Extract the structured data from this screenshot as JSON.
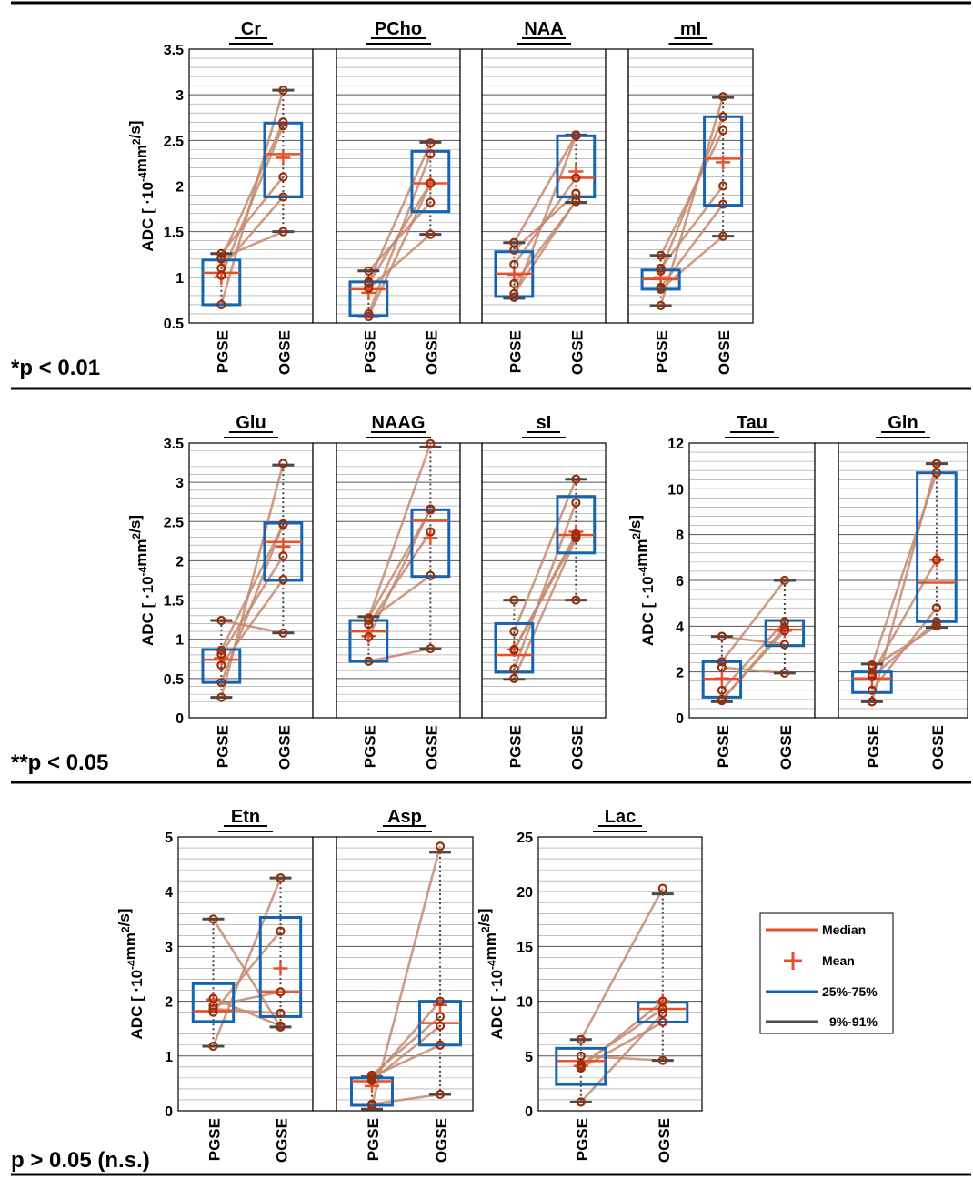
{
  "colors": {
    "median": "#e8502a",
    "mean": "#ea4e2a",
    "box": "#1464b4",
    "whisker": "#4a4a4a",
    "point": "#9a2e0a",
    "line": "#c58a6e",
    "frame": "#000000",
    "grid_major": "#555555",
    "grid_minor": "#9a9a9a"
  },
  "sections": [
    {
      "significance": "*p < 0.01"
    },
    {
      "significance": "**p < 0.05"
    },
    {
      "significance": "p > 0.05 (n.s.)"
    }
  ],
  "legend": {
    "median": "Median",
    "mean": "Mean",
    "box": "25%-75%",
    "whisker": "9%-91%"
  },
  "chart_data": [
    {
      "type": "box",
      "metabolite": "Cr",
      "ylim": [
        0.5,
        3.5
      ],
      "yticks": [
        0.5,
        1,
        1.5,
        2,
        2.5,
        3,
        3.5
      ],
      "ylabel": "ADC [ ·10^-4 mm^2/s]",
      "categories": [
        "PGSE",
        "OGSE"
      ],
      "pgse": {
        "q1": 0.7,
        "q3": 1.19,
        "median": 1.05,
        "mean": 1.0,
        "wlo": 0.7,
        "whi": 1.26,
        "points": [
          0.7,
          1.02,
          1.1,
          1.2,
          1.26,
          1.21
        ]
      },
      "ogse": {
        "q1": 1.88,
        "q3": 2.69,
        "median": 2.35,
        "mean": 2.31,
        "wlo": 1.5,
        "whi": 3.05,
        "points": [
          3.05,
          2.66,
          1.88,
          2.7,
          2.1,
          1.5
        ]
      }
    },
    {
      "type": "box",
      "metabolite": "PCho",
      "ylim": [
        0.5,
        3.5
      ],
      "yticks": [
        0.5,
        1,
        1.5,
        2,
        2.5,
        3,
        3.5
      ],
      "categories": [
        "PGSE",
        "OGSE"
      ],
      "pgse": {
        "q1": 0.58,
        "q3": 0.95,
        "median": 0.87,
        "mean": 0.83,
        "wlo": 0.57,
        "whi": 1.07,
        "points": [
          0.57,
          0.6,
          0.88,
          0.95,
          1.07,
          0.93
        ]
      },
      "ogse": {
        "q1": 1.72,
        "q3": 2.38,
        "median": 2.03,
        "mean": 2.03,
        "wlo": 1.47,
        "whi": 2.48,
        "points": [
          2.03,
          2.35,
          1.47,
          2.47,
          1.82,
          2.03
        ]
      }
    },
    {
      "type": "box",
      "metabolite": "NAA",
      "ylim": [
        0.5,
        3.5
      ],
      "yticks": [
        0.5,
        1,
        1.5,
        2,
        2.5,
        3,
        3.5
      ],
      "categories": [
        "PGSE",
        "OGSE"
      ],
      "pgse": {
        "q1": 0.79,
        "q3": 1.28,
        "median": 1.04,
        "mean": 1.03,
        "wlo": 0.77,
        "whi": 1.38,
        "points": [
          0.78,
          1.38,
          0.93,
          1.3,
          0.82,
          1.14
        ]
      },
      "ogse": {
        "q1": 1.88,
        "q3": 2.55,
        "median": 2.09,
        "mean": 2.16,
        "wlo": 1.82,
        "whi": 2.56,
        "points": [
          2.55,
          2.56,
          1.83,
          1.92,
          1.84,
          2.09
        ]
      }
    },
    {
      "type": "box",
      "metabolite": "mI",
      "ylim": [
        0.5,
        3.5
      ],
      "yticks": [
        0.5,
        1,
        1.5,
        2,
        2.5,
        3,
        3.5
      ],
      "categories": [
        "PGSE",
        "OGSE"
      ],
      "pgse": {
        "q1": 0.87,
        "q3": 1.08,
        "median": 0.98,
        "mean": 1.0,
        "wlo": 0.69,
        "whi": 1.24,
        "points": [
          0.69,
          1.07,
          1.24,
          1.1,
          0.89,
          0.87
        ]
      },
      "ogse": {
        "q1": 1.79,
        "q3": 2.76,
        "median": 2.3,
        "mean": 2.26,
        "wlo": 1.45,
        "whi": 2.97,
        "points": [
          2.98,
          2.76,
          2.61,
          2.0,
          1.8,
          1.45
        ]
      }
    },
    {
      "type": "box",
      "metabolite": "Glu",
      "ylim": [
        0,
        3.5
      ],
      "yticks": [
        0,
        0.5,
        1,
        1.5,
        2,
        2.5,
        3,
        3.5
      ],
      "categories": [
        "PGSE",
        "OGSE"
      ],
      "pgse": {
        "q1": 0.45,
        "q3": 0.87,
        "median": 0.74,
        "mean": 0.76,
        "wlo": 0.26,
        "whi": 1.24,
        "points": [
          0.26,
          0.45,
          0.67,
          0.81,
          0.86,
          1.24
        ]
      },
      "ogse": {
        "q1": 1.75,
        "q3": 2.48,
        "median": 2.24,
        "mean": 2.18,
        "wlo": 1.08,
        "whi": 3.22,
        "points": [
          3.24,
          2.47,
          1.76,
          2.06,
          2.46,
          1.08
        ]
      }
    },
    {
      "type": "box",
      "metabolite": "NAAG",
      "ylim": [
        0,
        3.5
      ],
      "yticks": [
        0,
        0.5,
        1,
        1.5,
        2,
        2.5,
        3,
        3.5
      ],
      "categories": [
        "PGSE",
        "OGSE"
      ],
      "pgse": {
        "q1": 0.72,
        "q3": 1.24,
        "median": 1.1,
        "mean": 1.04,
        "wlo": 0.72,
        "whi": 1.29,
        "points": [
          0.72,
          1.27,
          1.19,
          1.24,
          1.03,
          1.27
        ]
      },
      "ogse": {
        "q1": 1.8,
        "q3": 2.65,
        "median": 2.51,
        "mean": 2.29,
        "wlo": 0.88,
        "whi": 3.45,
        "points": [
          0.88,
          3.49,
          2.37,
          1.81,
          2.66,
          2.65
        ]
      }
    },
    {
      "type": "box",
      "metabolite": "sI",
      "ylim": [
        0,
        3.5
      ],
      "yticks": [
        0,
        0.5,
        1,
        1.5,
        2,
        2.5,
        3,
        3.5
      ],
      "categories": [
        "PGSE",
        "OGSE"
      ],
      "pgse": {
        "q1": 0.58,
        "q3": 1.2,
        "median": 0.8,
        "mean": 0.87,
        "wlo": 0.49,
        "whi": 1.5,
        "points": [
          1.5,
          1.1,
          0.62,
          0.5,
          0.86,
          0.87
        ]
      },
      "ogse": {
        "q1": 2.1,
        "q3": 2.82,
        "median": 2.33,
        "mean": 2.37,
        "wlo": 1.5,
        "whi": 3.04,
        "points": [
          1.5,
          3.04,
          2.74,
          2.29,
          2.31,
          2.34
        ]
      }
    },
    {
      "type": "box",
      "metabolite": "Tau",
      "ylim": [
        0,
        12
      ],
      "yticks": [
        0,
        2,
        4,
        6,
        8,
        10,
        12
      ],
      "categories": [
        "PGSE",
        "OGSE"
      ],
      "pgse": {
        "q1": 0.9,
        "q3": 2.45,
        "median": 1.7,
        "mean": 1.72,
        "wlo": 0.7,
        "whi": 3.55,
        "points": [
          3.55,
          2.2,
          2.45,
          0.8,
          1.2,
          0.75
        ]
      },
      "ogse": {
        "q1": 3.15,
        "q3": 4.25,
        "median": 3.85,
        "mean": 3.8,
        "wlo": 1.95,
        "whi": 6.0,
        "points": [
          3.2,
          1.95,
          6.0,
          3.8,
          4.2,
          3.95
        ]
      }
    },
    {
      "type": "box",
      "metabolite": "Gln",
      "ylim": [
        0,
        12
      ],
      "yticks": [
        0,
        2,
        4,
        6,
        8,
        10,
        12
      ],
      "categories": [
        "PGSE",
        "OGSE"
      ],
      "pgse": {
        "q1": 1.1,
        "q3": 2.0,
        "median": 1.72,
        "mean": 1.68,
        "wlo": 0.7,
        "whi": 2.35,
        "points": [
          0.7,
          2.3,
          1.2,
          1.8,
          1.9,
          2.2
        ]
      },
      "ogse": {
        "q1": 4.2,
        "q3": 10.7,
        "median": 5.9,
        "mean": 6.9,
        "wlo": 3.95,
        "whi": 11.1,
        "points": [
          11.1,
          10.7,
          4.8,
          4.2,
          6.9,
          4.0
        ]
      }
    },
    {
      "type": "box",
      "metabolite": "Etn",
      "ylim": [
        0,
        5
      ],
      "yticks": [
        0,
        1,
        2,
        3,
        4,
        5
      ],
      "categories": [
        "PGSE",
        "OGSE"
      ],
      "pgse": {
        "q1": 1.63,
        "q3": 2.32,
        "median": 1.82,
        "mean": 2.03,
        "wlo": 1.18,
        "whi": 3.5,
        "points": [
          1.18,
          3.5,
          1.8,
          1.86,
          1.92,
          2.05
        ]
      },
      "ogse": {
        "q1": 1.72,
        "q3": 3.53,
        "median": 2.17,
        "mean": 2.6,
        "wlo": 1.53,
        "whi": 4.25,
        "points": [
          4.25,
          1.53,
          3.28,
          1.78,
          2.17,
          1.55
        ]
      }
    },
    {
      "type": "box",
      "metabolite": "Asp",
      "ylim": [
        0,
        5
      ],
      "yticks": [
        0,
        1,
        2,
        3,
        4,
        5
      ],
      "categories": [
        "PGSE",
        "OGSE"
      ],
      "pgse": {
        "q1": 0.1,
        "q3": 0.6,
        "median": 0.54,
        "mean": 0.45,
        "wlo": 0.03,
        "whi": 0.62,
        "points": [
          0.1,
          0.58,
          0.65,
          0.55,
          0.62,
          0.12
        ]
      },
      "ogse": {
        "q1": 1.2,
        "q3": 2.0,
        "median": 1.6,
        "mean": 1.93,
        "wlo": 0.3,
        "whi": 4.72,
        "points": [
          4.83,
          2.0,
          1.72,
          1.55,
          1.2,
          0.3
        ]
      }
    },
    {
      "type": "box",
      "metabolite": "Lac",
      "ylim": [
        0,
        25
      ],
      "yticks": [
        0,
        5,
        10,
        15,
        20,
        25
      ],
      "categories": [
        "PGSE",
        "OGSE"
      ],
      "pgse": {
        "q1": 2.4,
        "q3": 5.7,
        "median": 4.55,
        "mean": 4.1,
        "wlo": 0.8,
        "whi": 6.5,
        "points": [
          6.5,
          5.0,
          4.2,
          3.9,
          0.8,
          4.0
        ]
      },
      "ogse": {
        "q1": 8.1,
        "q3": 9.9,
        "median": 9.3,
        "mean": 10.0,
        "wlo": 4.6,
        "whi": 19.8,
        "points": [
          20.3,
          4.6,
          9.3,
          8.1,
          8.9,
          10.0
        ]
      }
    }
  ]
}
